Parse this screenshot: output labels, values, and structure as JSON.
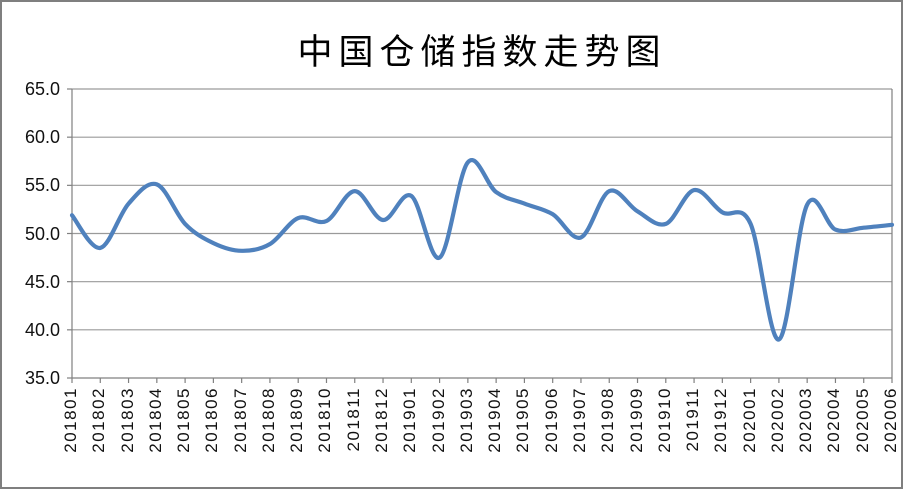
{
  "chart_data": {
    "type": "line",
    "title": "中国仓储指数走势图",
    "categories": [
      "201801",
      "201802",
      "201803",
      "201804",
      "201805",
      "201806",
      "201807",
      "201808",
      "201809",
      "201810",
      "201811",
      "201812",
      "201901",
      "201902",
      "201903",
      "201904",
      "201905",
      "201906",
      "201907",
      "201908",
      "201909",
      "201910",
      "201911",
      "201912",
      "202001",
      "202002",
      "202003",
      "202004",
      "202005",
      "202006"
    ],
    "values": [
      51.9,
      48.5,
      53.1,
      55.1,
      51.0,
      49.0,
      48.2,
      48.9,
      51.6,
      51.3,
      54.4,
      51.4,
      53.9,
      47.5,
      57.4,
      54.3,
      53.1,
      52.0,
      49.6,
      54.4,
      52.3,
      51.0,
      54.5,
      52.2,
      51.0,
      39.0,
      53.0,
      50.4,
      50.6,
      50.9
    ],
    "xlabel": "",
    "ylabel": "",
    "ylim": [
      35.0,
      65.0
    ],
    "ytick_step": 5.0,
    "ytick_labels": [
      "65.0",
      "60.0",
      "55.0",
      "50.0",
      "45.0",
      "40.0",
      "35.0"
    ],
    "grid": "horizontal-on",
    "legend_position": "none",
    "smooth_line": true,
    "line_color": "#4F81BD",
    "gridline_color": "#9a9a9a",
    "axis_color": "#808080",
    "text_color": "#111111",
    "background_color": "#ffffff"
  }
}
